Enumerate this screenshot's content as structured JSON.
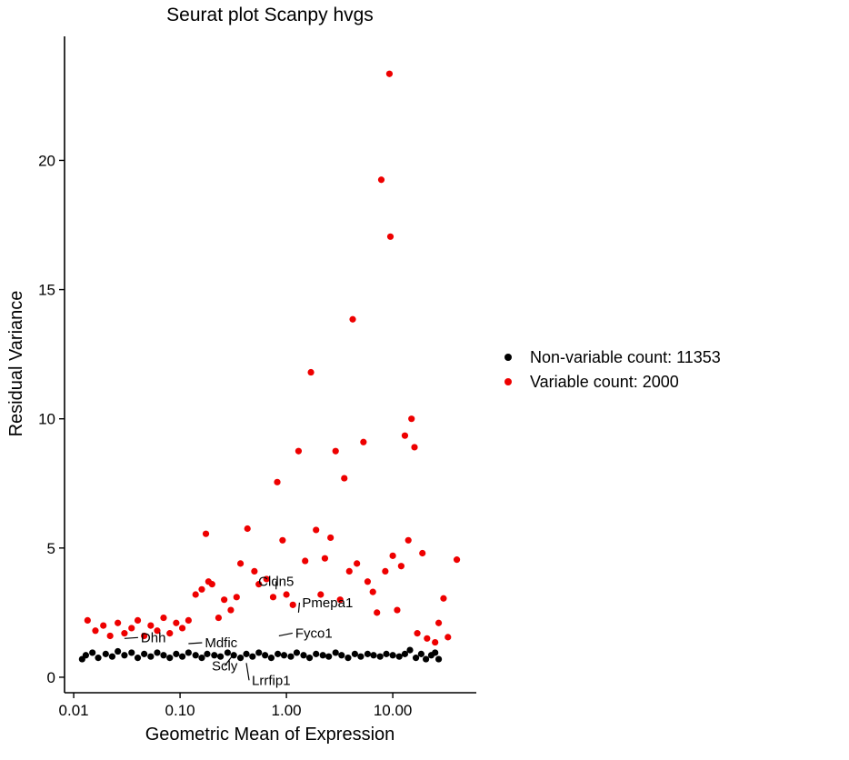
{
  "chart_data": {
    "type": "scatter",
    "title": "Seurat plot Scanpy hvgs",
    "xlabel": "Geometric Mean of Expression",
    "ylabel": "Residual Variance",
    "x_scale": "log10",
    "xlim": [
      0.0082,
      61
    ],
    "ylim": [
      -0.6,
      24.8
    ],
    "x_ticks": [
      0.01,
      0.1,
      1,
      10
    ],
    "x_tick_labels": [
      "0.01",
      "0.10",
      "1.00",
      "10.00"
    ],
    "y_ticks": [
      0,
      5,
      10,
      15,
      20
    ],
    "y_tick_labels": [
      "0",
      "5",
      "10",
      "15",
      "20"
    ],
    "grid": false,
    "legend_position": "right",
    "colors": {
      "non_variable": "#000000",
      "variable": "#ee0000"
    },
    "series": [
      {
        "name": "Non-variable count: 11353",
        "color": "#000000",
        "points": [
          [
            0.012,
            0.7
          ],
          [
            0.013,
            0.85
          ],
          [
            0.015,
            0.95
          ],
          [
            0.017,
            0.75
          ],
          [
            0.02,
            0.9
          ],
          [
            0.023,
            0.8
          ],
          [
            0.026,
            1.0
          ],
          [
            0.03,
            0.85
          ],
          [
            0.035,
            0.95
          ],
          [
            0.04,
            0.75
          ],
          [
            0.046,
            0.9
          ],
          [
            0.053,
            0.8
          ],
          [
            0.061,
            0.95
          ],
          [
            0.07,
            0.85
          ],
          [
            0.08,
            0.75
          ],
          [
            0.092,
            0.9
          ],
          [
            0.105,
            0.8
          ],
          [
            0.12,
            0.95
          ],
          [
            0.14,
            0.85
          ],
          [
            0.16,
            0.75
          ],
          [
            0.18,
            0.9
          ],
          [
            0.21,
            0.85
          ],
          [
            0.24,
            0.8
          ],
          [
            0.28,
            0.95
          ],
          [
            0.32,
            0.85
          ],
          [
            0.37,
            0.75
          ],
          [
            0.42,
            0.9
          ],
          [
            0.48,
            0.8
          ],
          [
            0.55,
            0.95
          ],
          [
            0.63,
            0.85
          ],
          [
            0.72,
            0.75
          ],
          [
            0.83,
            0.9
          ],
          [
            0.95,
            0.85
          ],
          [
            1.1,
            0.8
          ],
          [
            1.25,
            0.95
          ],
          [
            1.45,
            0.85
          ],
          [
            1.65,
            0.75
          ],
          [
            1.9,
            0.9
          ],
          [
            2.2,
            0.85
          ],
          [
            2.5,
            0.8
          ],
          [
            2.9,
            0.95
          ],
          [
            3.3,
            0.85
          ],
          [
            3.8,
            0.75
          ],
          [
            4.4,
            0.9
          ],
          [
            5.0,
            0.8
          ],
          [
            5.8,
            0.9
          ],
          [
            6.6,
            0.85
          ],
          [
            7.6,
            0.8
          ],
          [
            8.7,
            0.9
          ],
          [
            10.0,
            0.85
          ],
          [
            11.5,
            0.8
          ],
          [
            13.0,
            0.9
          ],
          [
            14.5,
            1.05
          ],
          [
            16.5,
            0.75
          ],
          [
            18.5,
            0.9
          ],
          [
            20.5,
            0.7
          ],
          [
            23.0,
            0.85
          ],
          [
            25.0,
            0.95
          ],
          [
            27.0,
            0.7
          ]
        ]
      },
      {
        "name": "Variable count: 2000",
        "color": "#ee0000",
        "points": [
          [
            0.0135,
            2.2
          ],
          [
            0.016,
            1.8
          ],
          [
            0.019,
            2.0
          ],
          [
            0.022,
            1.6
          ],
          [
            0.026,
            2.1
          ],
          [
            0.03,
            1.7
          ],
          [
            0.035,
            1.9
          ],
          [
            0.04,
            2.2
          ],
          [
            0.046,
            1.6
          ],
          [
            0.053,
            2.0
          ],
          [
            0.061,
            1.8
          ],
          [
            0.07,
            2.3
          ],
          [
            0.08,
            1.7
          ],
          [
            0.092,
            2.1
          ],
          [
            0.105,
            1.9
          ],
          [
            0.12,
            2.2
          ],
          [
            0.14,
            3.2
          ],
          [
            0.16,
            3.4
          ],
          [
            0.175,
            5.55
          ],
          [
            0.185,
            3.7
          ],
          [
            0.2,
            3.6
          ],
          [
            0.23,
            2.3
          ],
          [
            0.26,
            3.0
          ],
          [
            0.3,
            2.6
          ],
          [
            0.34,
            3.1
          ],
          [
            0.37,
            4.4
          ],
          [
            0.43,
            5.75
          ],
          [
            0.5,
            4.1
          ],
          [
            0.55,
            3.6
          ],
          [
            0.65,
            3.8
          ],
          [
            0.75,
            3.1
          ],
          [
            0.82,
            7.55
          ],
          [
            0.92,
            5.3
          ],
          [
            1.0,
            3.2
          ],
          [
            1.15,
            2.8
          ],
          [
            1.3,
            8.75
          ],
          [
            1.5,
            4.5
          ],
          [
            1.7,
            11.8
          ],
          [
            1.9,
            5.7
          ],
          [
            2.1,
            3.2
          ],
          [
            2.3,
            4.6
          ],
          [
            2.6,
            5.4
          ],
          [
            2.9,
            8.75
          ],
          [
            3.2,
            3.0
          ],
          [
            3.5,
            7.7
          ],
          [
            3.9,
            4.1
          ],
          [
            4.2,
            13.85
          ],
          [
            4.6,
            4.4
          ],
          [
            5.3,
            9.1
          ],
          [
            5.8,
            3.7
          ],
          [
            6.5,
            3.3
          ],
          [
            7.1,
            2.5
          ],
          [
            7.8,
            19.25
          ],
          [
            8.5,
            4.1
          ],
          [
            9.3,
            23.35
          ],
          [
            9.5,
            17.05
          ],
          [
            10.0,
            4.7
          ],
          [
            11.0,
            2.6
          ],
          [
            12.0,
            4.3
          ],
          [
            13.0,
            9.35
          ],
          [
            14.0,
            5.3
          ],
          [
            15.0,
            10.0
          ],
          [
            16.0,
            8.9
          ],
          [
            17.0,
            1.7
          ],
          [
            19.0,
            4.8
          ],
          [
            21.0,
            1.5
          ],
          [
            25.0,
            1.35
          ],
          [
            27.0,
            2.1
          ],
          [
            30.0,
            3.05
          ],
          [
            33.0,
            1.55
          ],
          [
            40.0,
            4.55
          ]
        ]
      }
    ],
    "annotations": [
      {
        "text": "Cldn5",
        "x": 0.8,
        "y": 3.4
      },
      {
        "text": "Pmepa1",
        "x": 1.3,
        "y": 2.5
      },
      {
        "text": "Fyco1",
        "x": 0.85,
        "y": 1.6
      },
      {
        "text": "Dhh",
        "x": 0.03,
        "y": 1.5
      },
      {
        "text": "Mdfic",
        "x": 0.12,
        "y": 1.3
      },
      {
        "text": "Scly",
        "x": 0.32,
        "y": 0.9
      },
      {
        "text": "Lrrfip1",
        "x": 0.42,
        "y": 0.55
      }
    ]
  }
}
